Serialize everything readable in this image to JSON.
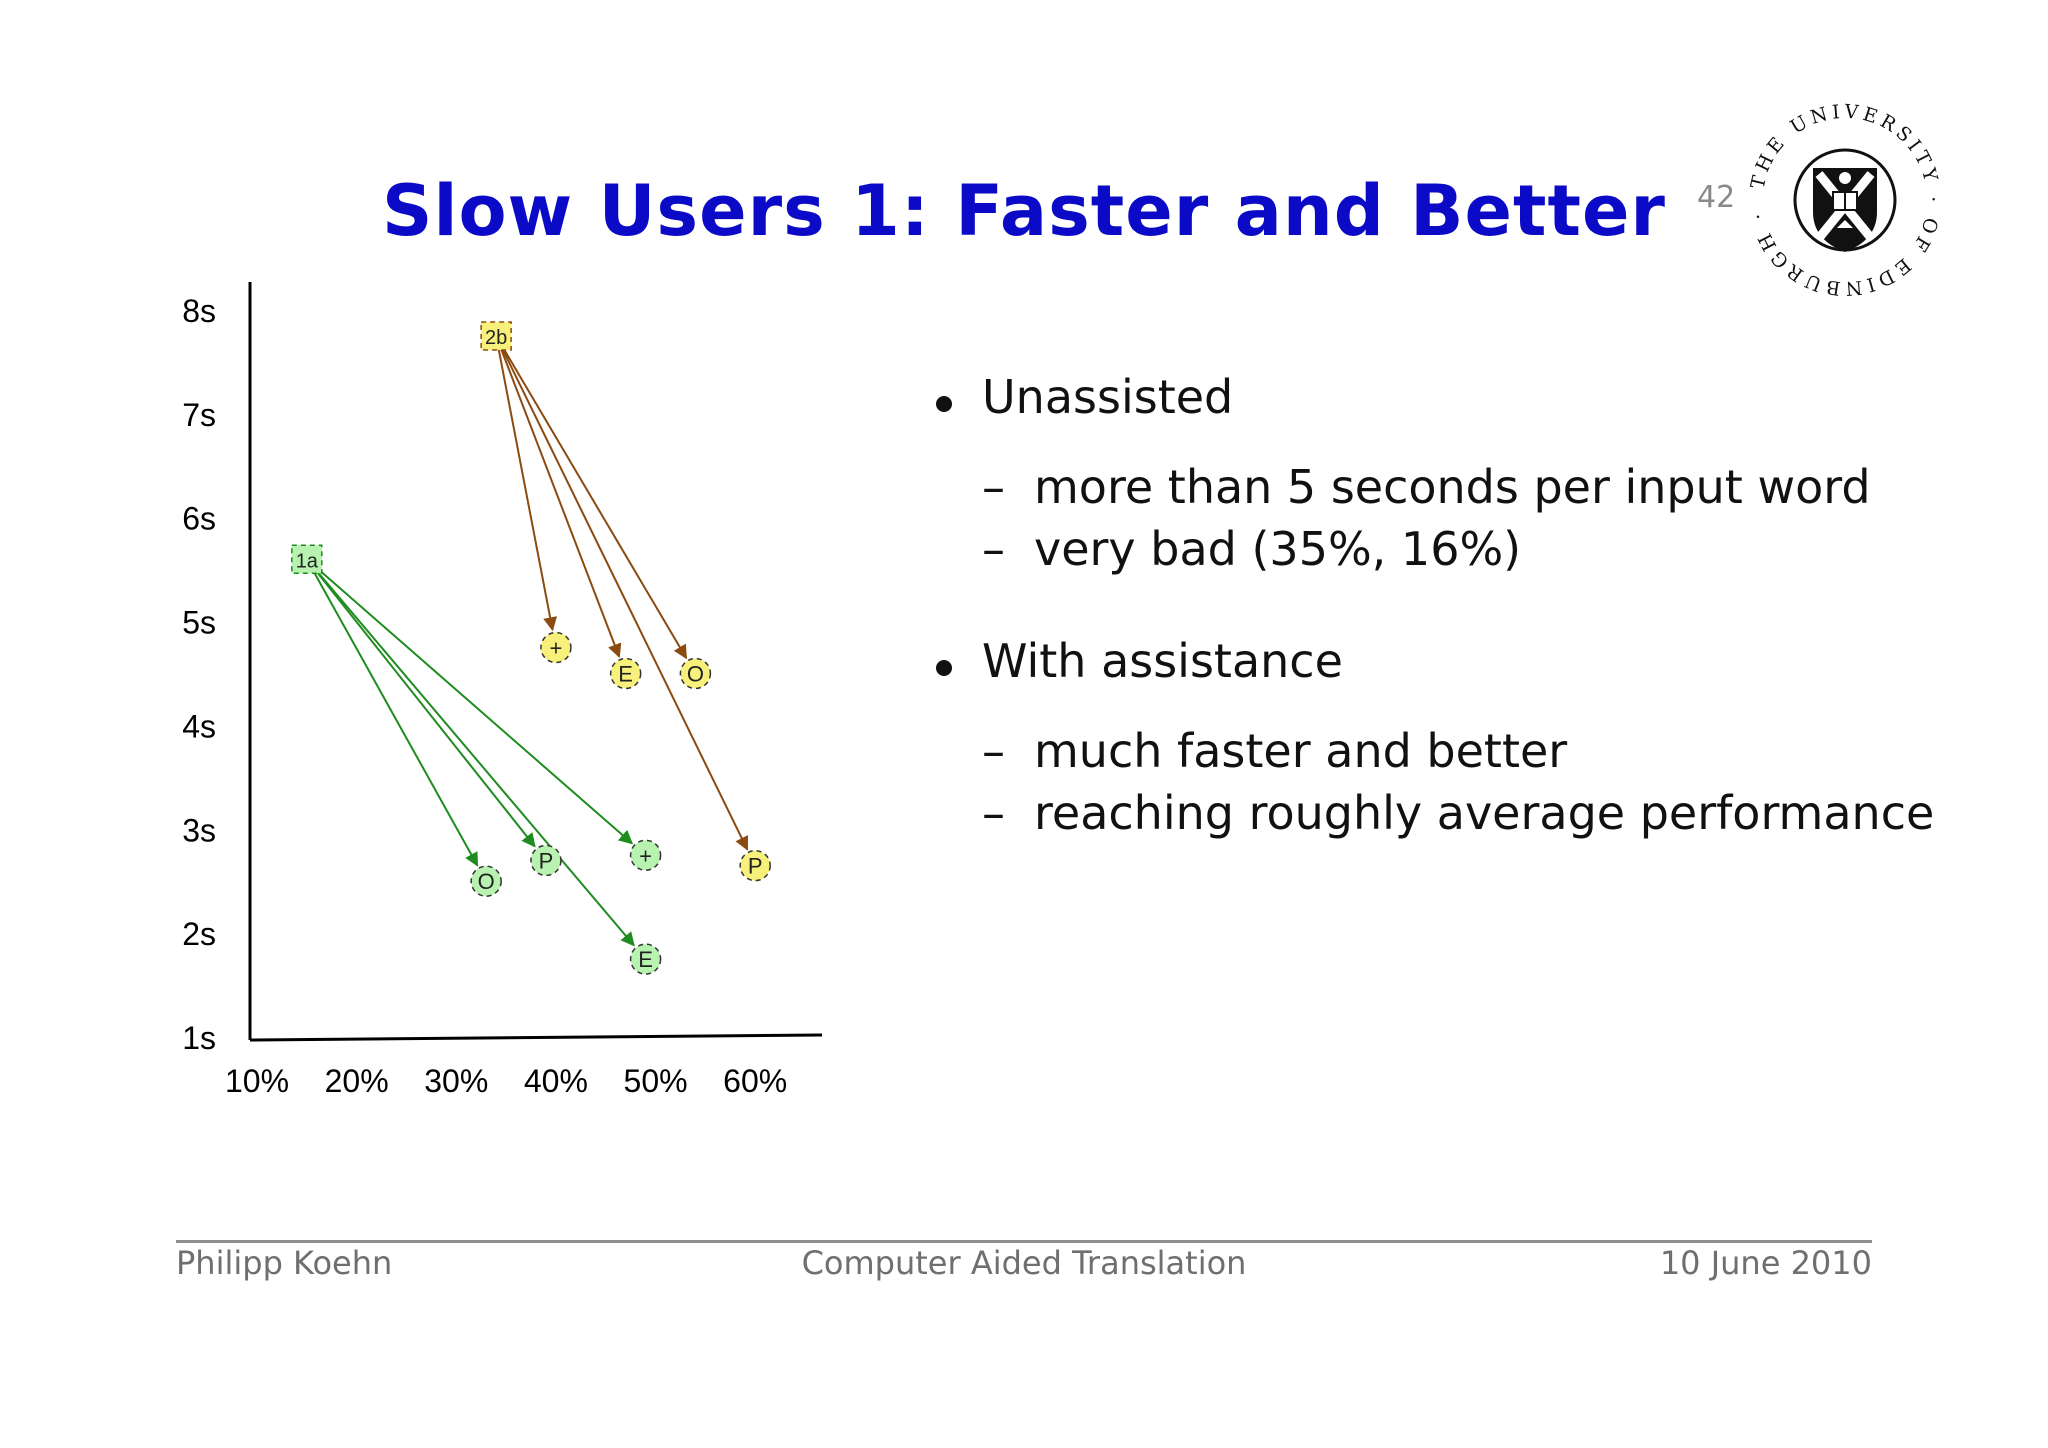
{
  "slide": {
    "title": "Slow Users 1: Faster and Better",
    "page_number": "42",
    "logo_text": "THE UNIVERSITY OF EDINBURGH"
  },
  "bullets": [
    {
      "text": "Unassisted",
      "subitems": [
        "more than 5 seconds per input word",
        "very bad (35%, 16%)"
      ]
    },
    {
      "text": "With assistance",
      "subitems": [
        "much faster and better",
        "reaching roughly average performance"
      ]
    }
  ],
  "footer": {
    "author": "Philipp Koehn",
    "center": "Computer Aided Translation",
    "date": "10 June 2010"
  },
  "colors": {
    "title": "#0b0bc7",
    "green_arrow": "#1e8c1e",
    "green_fill": "#b8f2b0",
    "brown_arrow": "#8b4a10",
    "yellow_fill": "#f7f07a"
  },
  "chart_data": {
    "type": "scatter",
    "x_ticks": [
      "10%",
      "20%",
      "30%",
      "40%",
      "50%",
      "60%"
    ],
    "y_ticks": [
      "1s",
      "2s",
      "3s",
      "4s",
      "5s",
      "6s",
      "7s",
      "8s"
    ],
    "xlim": [
      10,
      65
    ],
    "ylim": [
      1,
      8
    ],
    "groups": [
      {
        "start": {
          "label": "1a",
          "x": 15,
          "y": 5.6
        },
        "color": "green",
        "points": [
          {
            "label": "O",
            "x": 33,
            "y": 2.5
          },
          {
            "label": "P",
            "x": 39,
            "y": 2.7
          },
          {
            "label": "+",
            "x": 49,
            "y": 2.75
          },
          {
            "label": "E",
            "x": 49,
            "y": 1.75
          }
        ]
      },
      {
        "start": {
          "label": "2b",
          "x": 34,
          "y": 7.75
        },
        "color": "yellow",
        "points": [
          {
            "label": "+",
            "x": 40,
            "y": 4.75
          },
          {
            "label": "E",
            "x": 47,
            "y": 4.5
          },
          {
            "label": "O",
            "x": 54,
            "y": 4.5
          },
          {
            "label": "P",
            "x": 60,
            "y": 2.65
          }
        ]
      }
    ]
  }
}
